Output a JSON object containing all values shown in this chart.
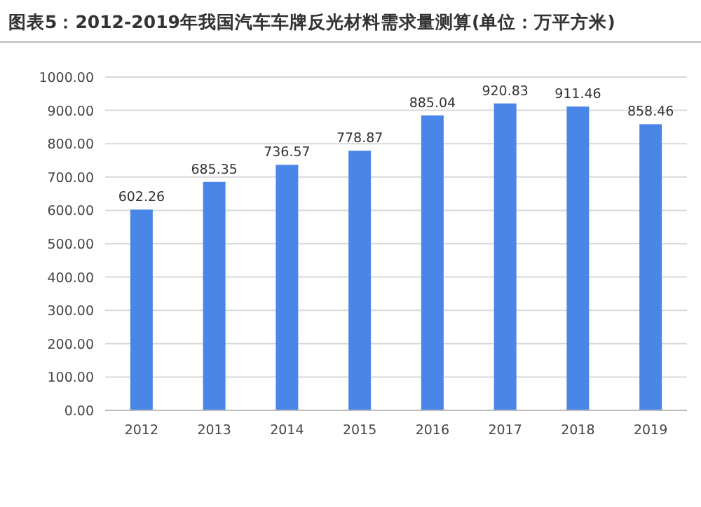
{
  "chart_data": {
    "type": "bar",
    "title": "图表5：2012-2019年我国汽车车牌反光材料需求量测算(单位：万平方米)",
    "categories": [
      "2012",
      "2013",
      "2014",
      "2015",
      "2016",
      "2017",
      "2018",
      "2019"
    ],
    "values": [
      602.26,
      685.35,
      736.57,
      778.87,
      885.04,
      920.83,
      911.46,
      858.46
    ],
    "color": "#4a86e8",
    "data_labels": true,
    "grid": "y",
    "ylim": [
      0,
      1000
    ],
    "yticks": [
      {
        "value": 0,
        "label": "0.00"
      },
      {
        "value": 100,
        "label": "100.00"
      },
      {
        "value": 200,
        "label": "200.00"
      },
      {
        "value": 300,
        "label": "300.00"
      },
      {
        "value": 400,
        "label": "400.00"
      },
      {
        "value": 500,
        "label": "500.00"
      },
      {
        "value": 600,
        "label": "600.00"
      },
      {
        "value": 700,
        "label": "700.00"
      },
      {
        "value": 800,
        "label": "800.00"
      },
      {
        "value": 900,
        "label": "900.00"
      },
      {
        "value": 1000,
        "label": "1000.00"
      }
    ]
  }
}
